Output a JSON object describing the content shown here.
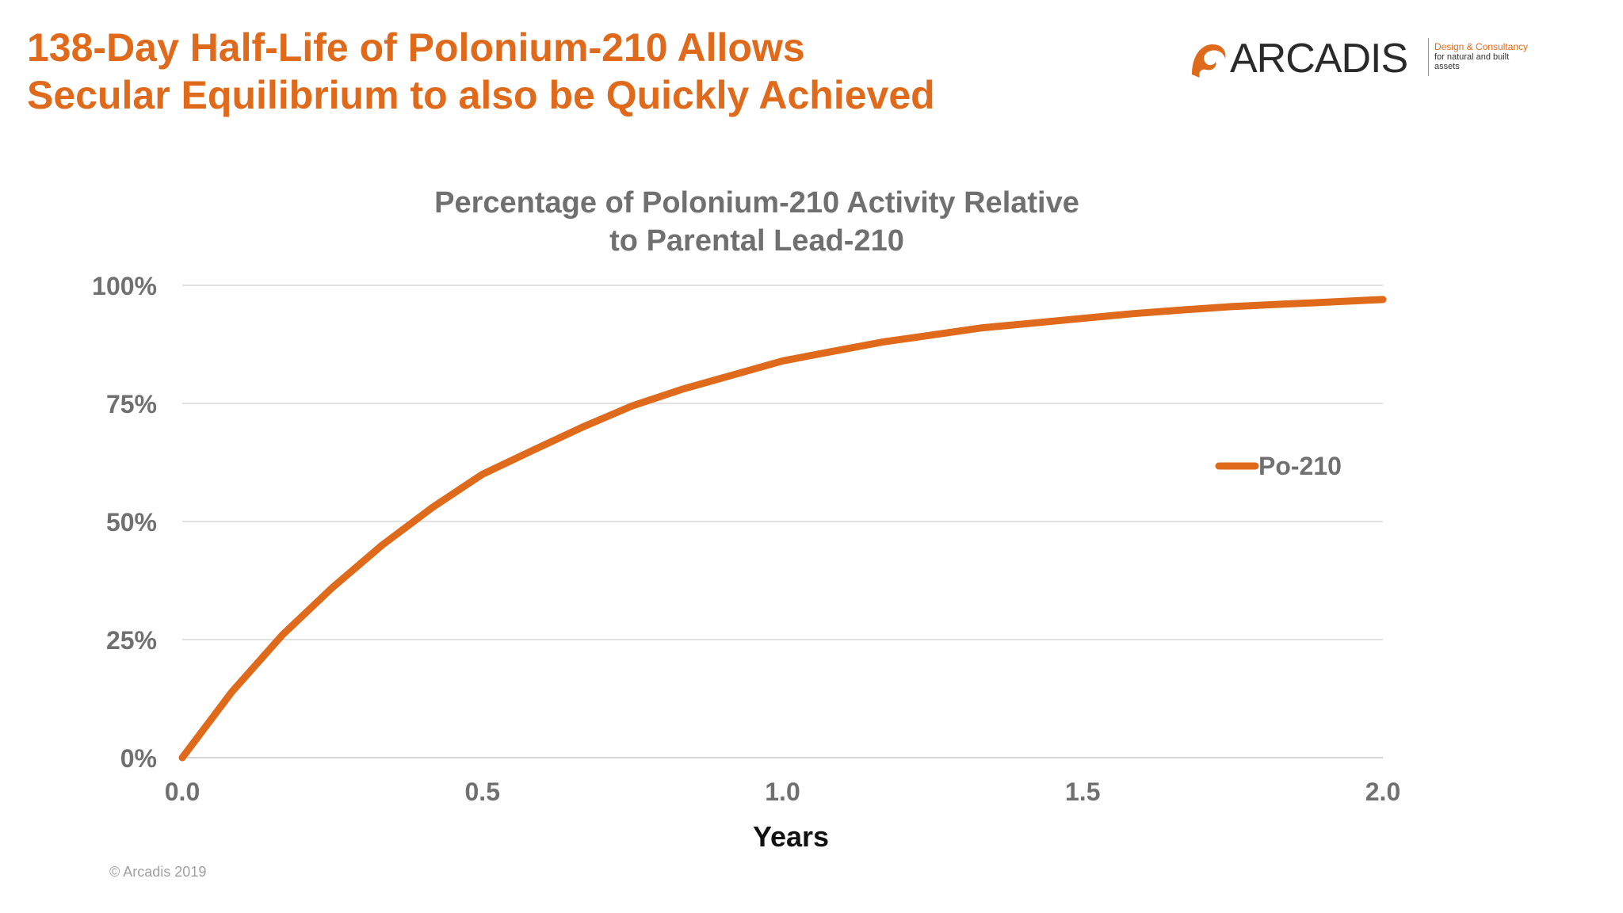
{
  "slide": {
    "title_line1": "138-Day Half-Life of Polonium-210 Allows",
    "title_line2": "Secular Equilibrium to also be Quickly Achieved",
    "footer": "© Arcadis 2019"
  },
  "logo": {
    "wordmark": "ARCADIS",
    "tagline_line1": "Design & Consultancy",
    "tagline_line2": "for natural and built assets",
    "icon": "arcadis-swirl-icon"
  },
  "colors": {
    "accent": "#e06a1b",
    "axis_text": "#707070",
    "grid": "#d9d9d9"
  },
  "chart_data": {
    "type": "line",
    "title_line1": "Percentage of Polonium-210 Activity Relative",
    "title_line2": "to Parental Lead-210",
    "xlabel": "Years",
    "ylabel": "",
    "xlim": [
      0,
      2
    ],
    "ylim": [
      0,
      100
    ],
    "x_ticks": [
      0,
      0.5,
      1.0,
      1.5,
      2.0
    ],
    "x_tick_labels": [
      "0.0",
      "0.5",
      "1.0",
      "1.5",
      "2.0"
    ],
    "y_ticks": [
      0,
      25,
      50,
      75,
      100
    ],
    "y_tick_labels": [
      "0%",
      "25%",
      "50%",
      "75%",
      "100%"
    ],
    "grid": "horizontal",
    "legend_position": "right",
    "series": [
      {
        "name": "Po-210",
        "color": "#e06a1b",
        "x": [
          0,
          0.083,
          0.167,
          0.25,
          0.333,
          0.417,
          0.5,
          0.583,
          0.667,
          0.75,
          0.833,
          0.917,
          1.0,
          1.083,
          1.167,
          1.25,
          1.333,
          1.417,
          1.5,
          1.583,
          1.667,
          1.75,
          1.833,
          1.917,
          2.0
        ],
        "values": [
          0,
          14,
          26,
          36,
          45,
          53,
          60,
          65,
          70,
          74.5,
          78,
          81,
          84,
          86,
          88,
          89.5,
          91,
          92,
          93,
          94,
          94.8,
          95.5,
          96,
          96.5,
          97
        ]
      }
    ]
  }
}
